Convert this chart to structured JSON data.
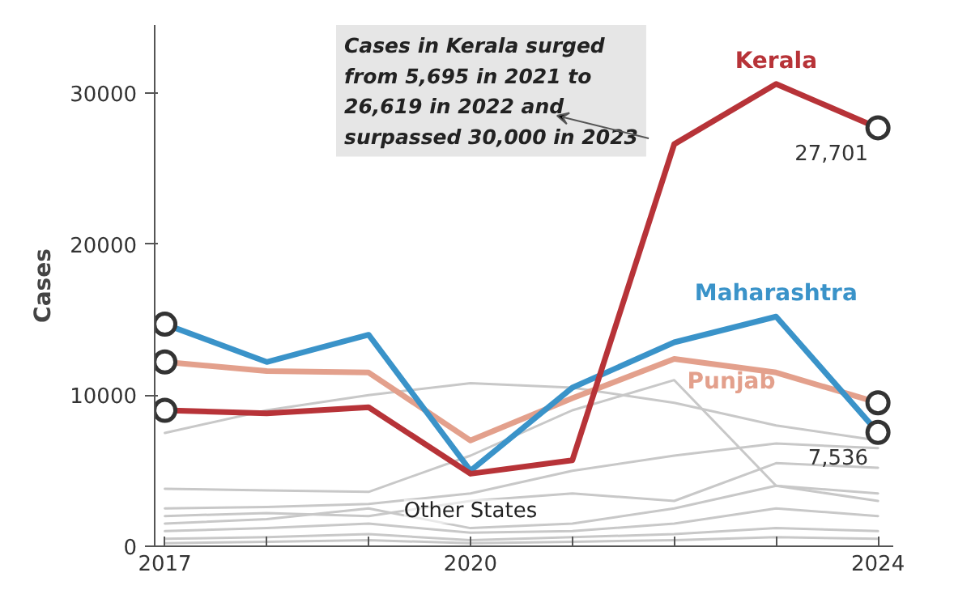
{
  "chart_data": {
    "type": "line",
    "ylabel": "Cases",
    "x": [
      2017,
      2018,
      2019,
      2020,
      2021,
      2022,
      2023,
      2024
    ],
    "xlim": [
      2016.9,
      2024.15
    ],
    "ylim": [
      0,
      34500
    ],
    "xticks": [
      2017,
      {
        "value": 2018,
        "label": null
      },
      {
        "value": 2019,
        "label": null
      },
      2020,
      {
        "value": 2021,
        "label": null
      },
      {
        "value": 2022,
        "label": null
      },
      {
        "value": 2023,
        "label": null
      },
      2024
    ],
    "yticks": [
      0,
      10000,
      20000,
      30000
    ],
    "grid": false,
    "line_style": "solid",
    "series": [
      {
        "color": "#c8c8c8",
        "values": [
          7500,
          9000,
          10000,
          10800,
          10500,
          9500,
          8000,
          7000
        ]
      },
      {
        "color": "#c8c8c8",
        "values": [
          3800,
          3700,
          3600,
          6000,
          9000,
          11000,
          4000,
          3000
        ]
      },
      {
        "color": "#c8c8c8",
        "values": [
          2500,
          2600,
          2800,
          3500,
          5000,
          6000,
          6800,
          6500
        ]
      },
      {
        "color": "#c8c8c8",
        "values": [
          2000,
          2200,
          2000,
          3000,
          3500,
          3000,
          5500,
          5200
        ]
      },
      {
        "color": "#c8c8c8",
        "values": [
          1500,
          1800,
          2500,
          1200,
          1500,
          2500,
          4000,
          3500
        ]
      },
      {
        "color": "#c8c8c8",
        "values": [
          1000,
          1200,
          1500,
          900,
          1000,
          1500,
          2500,
          2000
        ]
      },
      {
        "color": "#c8c8c8",
        "values": [
          500,
          600,
          800,
          400,
          600,
          800,
          1200,
          1000
        ]
      },
      {
        "color": "#c8c8c8",
        "values": [
          200,
          300,
          400,
          200,
          300,
          400,
          600,
          500
        ]
      },
      {
        "name": "Punjab",
        "color": "#e3a08c",
        "values": [
          12200,
          11600,
          11500,
          7000,
          9800,
          12400,
          11500,
          9500
        ]
      },
      {
        "name": "Maharashtra",
        "color": "#3a93c9",
        "values": [
          14700,
          12200,
          14000,
          5000,
          10500,
          13500,
          15200,
          7536
        ],
        "value_labels": [
          null,
          null,
          null,
          null,
          null,
          null,
          null,
          "7,536"
        ]
      },
      {
        "name": "Kerala",
        "color": "#b73338",
        "values": [
          9000,
          8800,
          9200,
          4800,
          5695,
          26619,
          30600,
          27701
        ],
        "value_labels": [
          null,
          null,
          null,
          null,
          null,
          null,
          null,
          "27,701"
        ]
      }
    ],
    "annotations": [
      "Cases in Kerala surged\nfrom 5,695 in 2021 to\n26,619 in 2022 and\nsurpassed 30,000 in 2023",
      {
        "text": "Other States",
        "x": 2020,
        "y": 1500
      }
    ]
  }
}
